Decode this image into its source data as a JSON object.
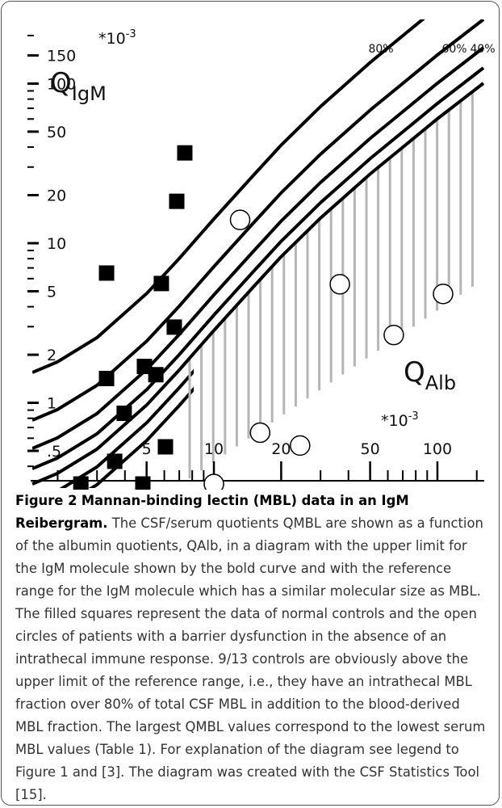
{
  "chart_data": {
    "type": "scatter",
    "log_x": true,
    "log_y": true,
    "xlim": [
      1.54,
      162
    ],
    "ylim": [
      0.31,
      230
    ],
    "xticks": [
      5,
      10,
      20,
      50,
      100
    ],
    "xminorticks": [
      2,
      3,
      4,
      6,
      7,
      8,
      9,
      30,
      40,
      60,
      70,
      80,
      90,
      150
    ],
    "yticks": [
      {
        "value": 0.5,
        "label": ".5"
      },
      1,
      2,
      5,
      10,
      20,
      50,
      100,
      150
    ],
    "yminorticks": [
      0.4,
      0.6,
      0.7,
      0.8,
      0.9,
      3,
      4,
      6,
      7,
      8,
      9,
      30,
      40,
      60,
      70,
      80,
      90,
      200
    ],
    "annotations": {
      "y_unit": {
        "text": "*10",
        "sup": "-3"
      },
      "y_label": {
        "text": "Q",
        "sub": "IgM"
      },
      "x_label": {
        "text": "Q",
        "sub": "Alb"
      },
      "x_unit": {
        "text": "*10",
        "sup": "-3"
      },
      "lines": [
        "80%",
        "60%",
        "40%"
      ]
    },
    "series": [
      {
        "marker": "square",
        "color": "#000000",
        "x": [
          7.41,
          6.82,
          3.31,
          5.82,
          6.65,
          4.89,
          5.5,
          3.31,
          3.97,
          6.07,
          3.6,
          2.54,
          4.81
        ],
        "values": [
          36.8,
          18.3,
          6.5,
          5.59,
          2.98,
          1.69,
          1.5,
          1.42,
          0.86,
          0.53,
          0.43,
          0.31,
          0.31
        ]
      },
      {
        "marker": "circle",
        "color": "#ffffff",
        "x": [
          13.1,
          36.6,
          106,
          63.8,
          16.1,
          24.3,
          10
        ],
        "values": [
          14.0,
          5.53,
          4.81,
          2.66,
          0.65,
          0.54,
          0.31
        ]
      }
    ]
  },
  "caption": {
    "label": "Figure 2",
    "title": "Mannan-binding lectin (MBL) data in an IgM Reibergram.",
    "text": "The CSF/serum quotients QMBL are shown as a function of the albumin quotients, QAlb, in a diagram with the upper limit for the IgM molecule shown by the bold curve and with the reference range for the IgM molecule which has a similar molecular size as MBL. The filled squares represent the data of normal controls and the open circles of patients with a barrier dysfunction in the absence of an intrathecal immune response. 9/13 controls are obviously above the upper limit of the reference range, i.e., they have an intrathecal MBL fraction over 80% of total CSF MBL in addition to the blood-derived MBL fraction. The largest QMBL values correspond to the lowest serum MBL values (Table 1). For explanation of the diagram see legend to Figure 1 and [3]. The diagram was created with the CSF Statistics Tool [15]."
  }
}
